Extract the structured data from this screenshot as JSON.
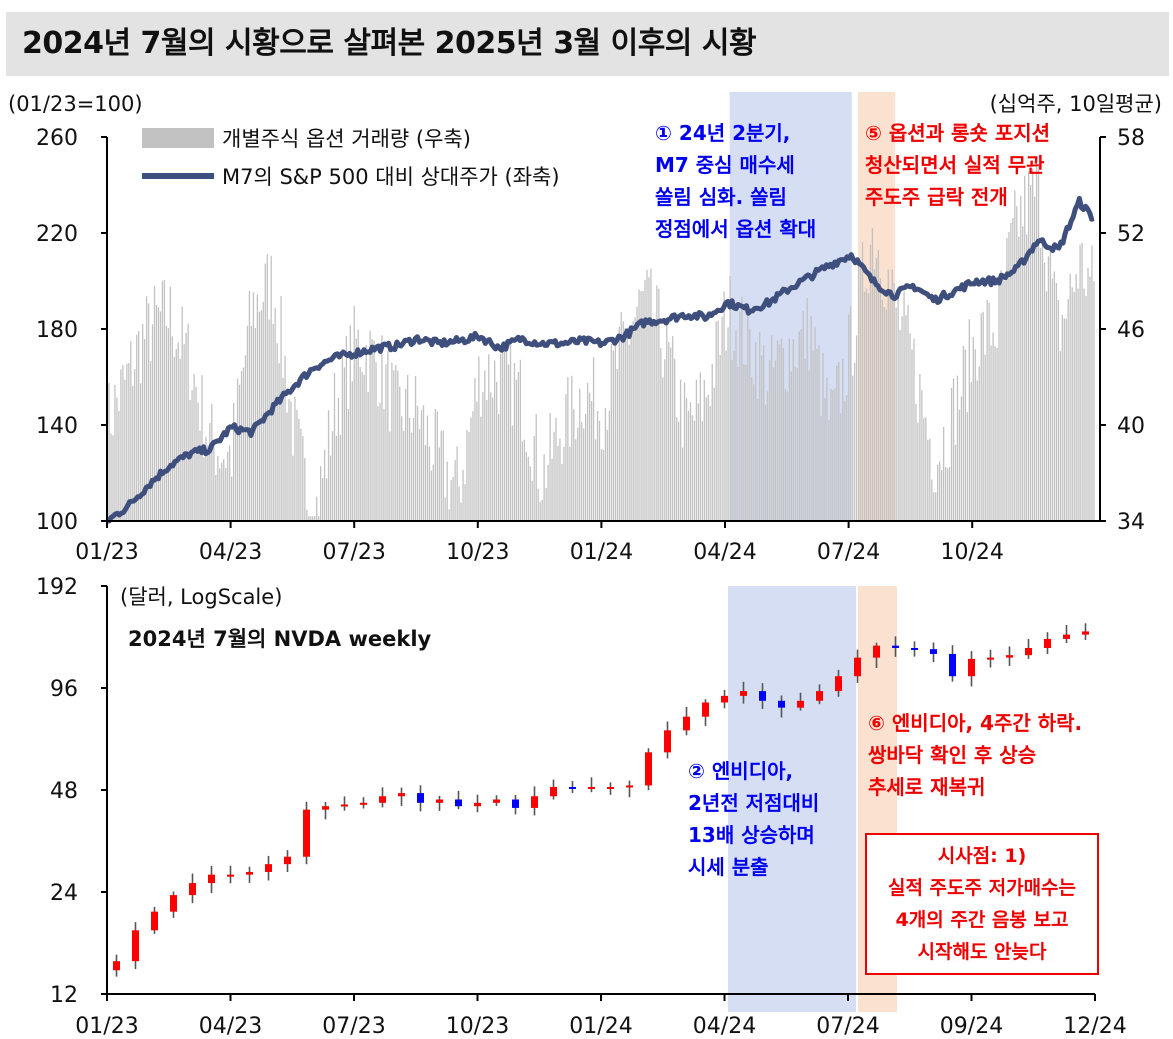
{
  "title": "2024년 7월의 시황으로 살펴본 2025년 3월 이후의 시황",
  "colors": {
    "volume_bar": "#c2c2c2",
    "relative_line": "#3f4f7d",
    "candle_up": "#ff0000",
    "candle_down": "#0000ff",
    "wick": "#555555",
    "shade_blue": "#d6def3",
    "shade_orange": "#fbe1cf",
    "note_blue": "#0000ee",
    "note_red": "#ee0000"
  },
  "chart_data": [
    {
      "type": "line",
      "left_unit": "(01/23=100)",
      "right_unit": "(십억주, 10일평균)",
      "left_ticks": [
        "260",
        "220",
        "180",
        "140",
        "100"
      ],
      "right_ticks": [
        "58",
        "52",
        "46",
        "40",
        "34"
      ],
      "left_ylim": [
        100,
        260
      ],
      "right_ylim": [
        34,
        58
      ],
      "x_ticks": [
        "01/23",
        "04/23",
        "07/23",
        "10/23",
        "01/24",
        "04/24",
        "07/24",
        "10/24"
      ],
      "legend": {
        "bar_label": "개별주식 옵션 거래량 (우축)",
        "line_label": "M7의 S&P 500 대비 상대주가 (좌축)"
      },
      "series": [
        {
          "name": "M7의 S&P 500 대비 상대주가 (좌축)",
          "axis": "left",
          "x_month": [
            0,
            0.5,
            1,
            1.5,
            2,
            2.5,
            3,
            3.5,
            4,
            4.5,
            5,
            5.5,
            6,
            6.5,
            7,
            7.5,
            8,
            8.5,
            9,
            9.5,
            10,
            10.5,
            11,
            11.5,
            12,
            12.5,
            13,
            13.5,
            14,
            14.5,
            15,
            15.5,
            16,
            16.5,
            17,
            17.5,
            18,
            18.5,
            19,
            19.5,
            20,
            20.5,
            21,
            21.5,
            22,
            22.5,
            23,
            23.5,
            23.85
          ],
          "values": [
            100,
            106,
            115,
            123,
            128,
            130,
            139,
            137,
            147,
            156,
            164,
            168,
            170,
            172,
            173,
            176,
            174,
            175,
            177,
            172,
            176,
            174,
            174,
            175,
            174,
            177,
            183,
            184,
            186,
            185,
            191,
            188,
            191,
            197,
            202,
            207,
            211,
            200,
            194,
            198,
            192,
            196,
            200,
            200,
            205,
            217,
            213,
            233,
            226
          ]
        },
        {
          "name": "개별주식 옵션 거래량 (우축)",
          "axis": "right",
          "x_month": [
            0,
            0.5,
            1,
            1.5,
            2,
            2.5,
            3,
            3.5,
            4,
            4.5,
            5,
            5.5,
            6,
            6.5,
            7,
            7.5,
            8,
            8.5,
            9,
            9.5,
            10,
            10.5,
            11,
            11.5,
            12,
            12.5,
            13,
            13.5,
            14,
            14.5,
            15,
            15.5,
            16,
            16.5,
            17,
            17.5,
            18,
            18.5,
            19,
            19.5,
            20,
            20.5,
            21,
            21.5,
            22,
            22.5,
            23,
            23.5,
            23.85
          ],
          "values": [
            40,
            41,
            44,
            47,
            46,
            41,
            38,
            45,
            47,
            40,
            36,
            43,
            45,
            42,
            39,
            41,
            40,
            38,
            43,
            41,
            40,
            37,
            42,
            44,
            41,
            43,
            46,
            45,
            42,
            44,
            47,
            43,
            41,
            45,
            48,
            42,
            45,
            50,
            46,
            44,
            40,
            43,
            45,
            44,
            51,
            55,
            48,
            52,
            49
          ]
        }
      ],
      "annotations": [
        {
          "text": "① 24년 2분기,\nM7 중심 매수세\n쏠림 심화. 쏠림\n정점에서 옵션 확대",
          "color": "#0000ee"
        },
        {
          "text": "⑤ 옵션과 롱숏 포지션\n청산되면서 실적 무관\n주도주 급락 전개",
          "color": "#ee0000"
        }
      ]
    },
    {
      "type": "candlestick",
      "unit": "(달러, LogScale)",
      "subtitle": "2024년 7월의 NVDA weekly",
      "y_scale": "log",
      "y_ticks": [
        "192",
        "96",
        "48",
        "24",
        "12"
      ],
      "ylim": [
        12,
        192
      ],
      "x_ticks": [
        "01/23",
        "04/23",
        "07/23",
        "10/23",
        "01/24",
        "04/24",
        "07/24",
        "09/24",
        "12/24"
      ],
      "weeks": [
        1,
        3,
        5,
        7,
        9,
        11,
        13,
        15,
        17,
        19,
        21,
        23,
        25,
        27,
        29,
        31,
        33,
        35,
        37,
        39,
        41,
        43,
        45,
        47,
        49,
        51,
        53,
        55,
        57,
        59,
        61,
        63,
        65,
        67,
        69,
        71,
        73,
        75,
        77,
        79,
        81,
        83,
        85,
        87,
        89,
        91,
        93,
        95,
        97,
        99,
        101,
        103
      ],
      "close": [
        15,
        18.5,
        21,
        23.5,
        25.5,
        27,
        27,
        27.5,
        29,
        30.5,
        42,
        43,
        43.5,
        44,
        46,
        47,
        44,
        45,
        43,
        44,
        45,
        42.5,
        46,
        49,
        48.5,
        49,
        49,
        49.5,
        62,
        72,
        79,
        87,
        91,
        94,
        88,
        84,
        88,
        94,
        104,
        118,
        128,
        126,
        125,
        121,
        104,
        117,
        118,
        120,
        126,
        134,
        138,
        141
      ]
    }
  ],
  "annotations_bottom": [
    {
      "text": "② 엔비디아,\n2년전 저점대비\n13배 상승하며\n시세 분출",
      "color": "#0000ee"
    },
    {
      "text": "⑥ 엔비디아, 4주간 하락.\n쌍바닥 확인 후 상승\n추세로 재복귀",
      "color": "#ee0000"
    }
  ],
  "note_box": {
    "text": "시사점: 1)\n실적 주도주 저가매수는\n4개의 주간 음봉 보고\n시작해도 안늦다",
    "color": "#ee0000"
  }
}
